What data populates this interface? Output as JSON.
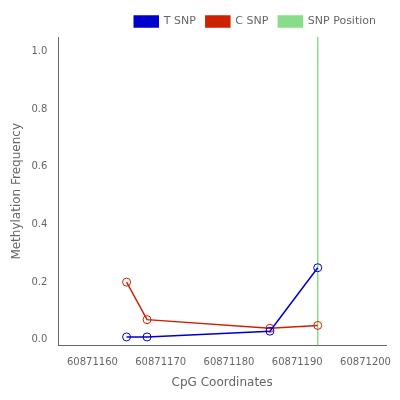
{
  "chart_data": {
    "type": "line",
    "x": [
      60871165,
      60871168,
      60871186,
      60871193
    ],
    "series": [
      {
        "name": "T SNP",
        "color": "#0000cc",
        "values": [
          0.01,
          0.01,
          0.03,
          0.25
        ],
        "marker": "circle"
      },
      {
        "name": "C SNP",
        "color": "#cc2200",
        "values": [
          0.2,
          0.07,
          0.04,
          0.05
        ],
        "marker": "circle"
      }
    ],
    "vline": {
      "name": "SNP Position",
      "color": "#88dd88",
      "x": 60871193
    },
    "xlabel": "CpG Coordinates",
    "ylabel": "Methylation Frequency",
    "xlim": [
      60871155,
      60871203
    ],
    "ylim": [
      -0.02,
      1.05
    ],
    "xticks": [
      60871160,
      60871170,
      60871180,
      60871190,
      60871200
    ],
    "yticks": [
      {
        "value": 0,
        "label": "0.0"
      },
      0.2,
      0.4,
      0.6,
      0.8,
      {
        "value": 1,
        "label": "1.0"
      }
    ],
    "legend": "upper right",
    "grid": false
  }
}
